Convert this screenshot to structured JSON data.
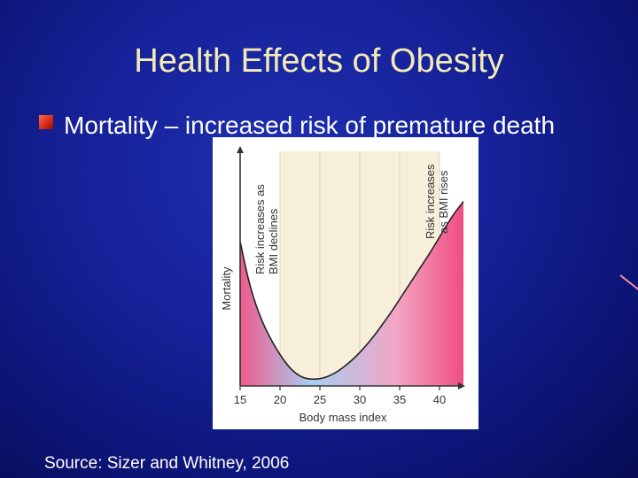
{
  "slide": {
    "title": "Health Effects of Obesity",
    "bullet": "Mortality – increased risk of premature death",
    "source": "Source:  Sizer and Whitney, 2006"
  },
  "colors": {
    "background": "#1620a0",
    "title": "#f2ecb4",
    "bullet_marker": "#d42c1c",
    "curve_fill_low": "#a7cdf2",
    "curve_fill_high": "#f04d80",
    "zone_band": "#f7efd9"
  },
  "chart_data": {
    "type": "area",
    "xlabel": "Body mass index",
    "ylabel": "Mortality",
    "x_ticks": [
      "15",
      "20",
      "25",
      "30",
      "35",
      "40"
    ],
    "xlim": [
      15,
      43
    ],
    "ylim": [
      0,
      10
    ],
    "band": [
      20,
      40
    ],
    "annotations": [
      {
        "lines": [
          "Risk increases as",
          "BMI declines"
        ],
        "near_x": 18
      },
      {
        "lines": [
          "Risk increases",
          "as BMI rises"
        ],
        "near_x": 41
      }
    ],
    "series": [
      {
        "x": [
          15,
          16,
          17,
          18,
          19,
          20,
          21,
          22,
          23,
          24,
          25,
          26,
          27,
          28,
          29,
          30,
          31,
          32,
          33,
          34,
          35,
          36,
          37,
          38,
          39,
          40,
          41,
          42,
          43
        ],
        "values": [
          6.5,
          4.8,
          3.6,
          2.7,
          2.0,
          1.4,
          0.9,
          0.55,
          0.35,
          0.3,
          0.32,
          0.42,
          0.6,
          0.85,
          1.15,
          1.5,
          1.9,
          2.35,
          2.85,
          3.35,
          3.9,
          4.45,
          5.0,
          5.55,
          6.1,
          6.7,
          7.3,
          7.85,
          8.3
        ]
      }
    ]
  }
}
